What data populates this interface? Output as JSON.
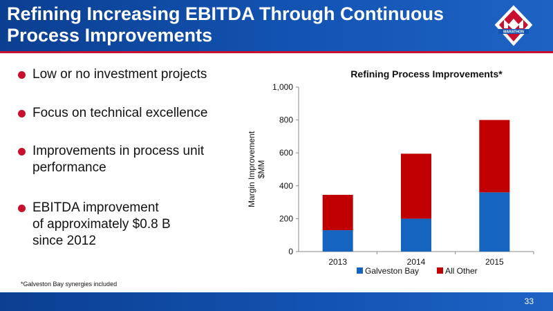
{
  "header": {
    "title": "Refining Increasing EBITDA Through Continuous\nProcess Improvements",
    "logo_text": "MARATHON"
  },
  "bullets": [
    "Low or no investment projects",
    "Focus on technical excellence",
    "Improvements in process unit\nperformance",
    "EBITDA improvement\nof approximately $0.8 B\nsince 2012"
  ],
  "footnote": "*Galveston Bay synergies included",
  "page_number": "33",
  "colors": {
    "brand_blue": "#0b3f91",
    "brand_red": "#c8102e",
    "series_blue": "#1565c0",
    "series_red": "#c00000"
  },
  "chart_data": {
    "type": "bar",
    "stacked": true,
    "title": "Refining Process Improvements*",
    "xlabel": "",
    "ylabel": "Margin Improvement\n$MM",
    "ylim": [
      0,
      1000
    ],
    "yticks": [
      "0",
      "200",
      "400",
      "600",
      "800",
      "1,000"
    ],
    "categories": [
      "2013",
      "2014",
      "2015"
    ],
    "series": [
      {
        "name": "Galveston Bay",
        "color": "#1565c0",
        "values": [
          130,
          200,
          360
        ]
      },
      {
        "name": "All Other",
        "color": "#c00000",
        "values": [
          215,
          395,
          440
        ]
      }
    ],
    "legend": "bottom",
    "grid": false
  }
}
